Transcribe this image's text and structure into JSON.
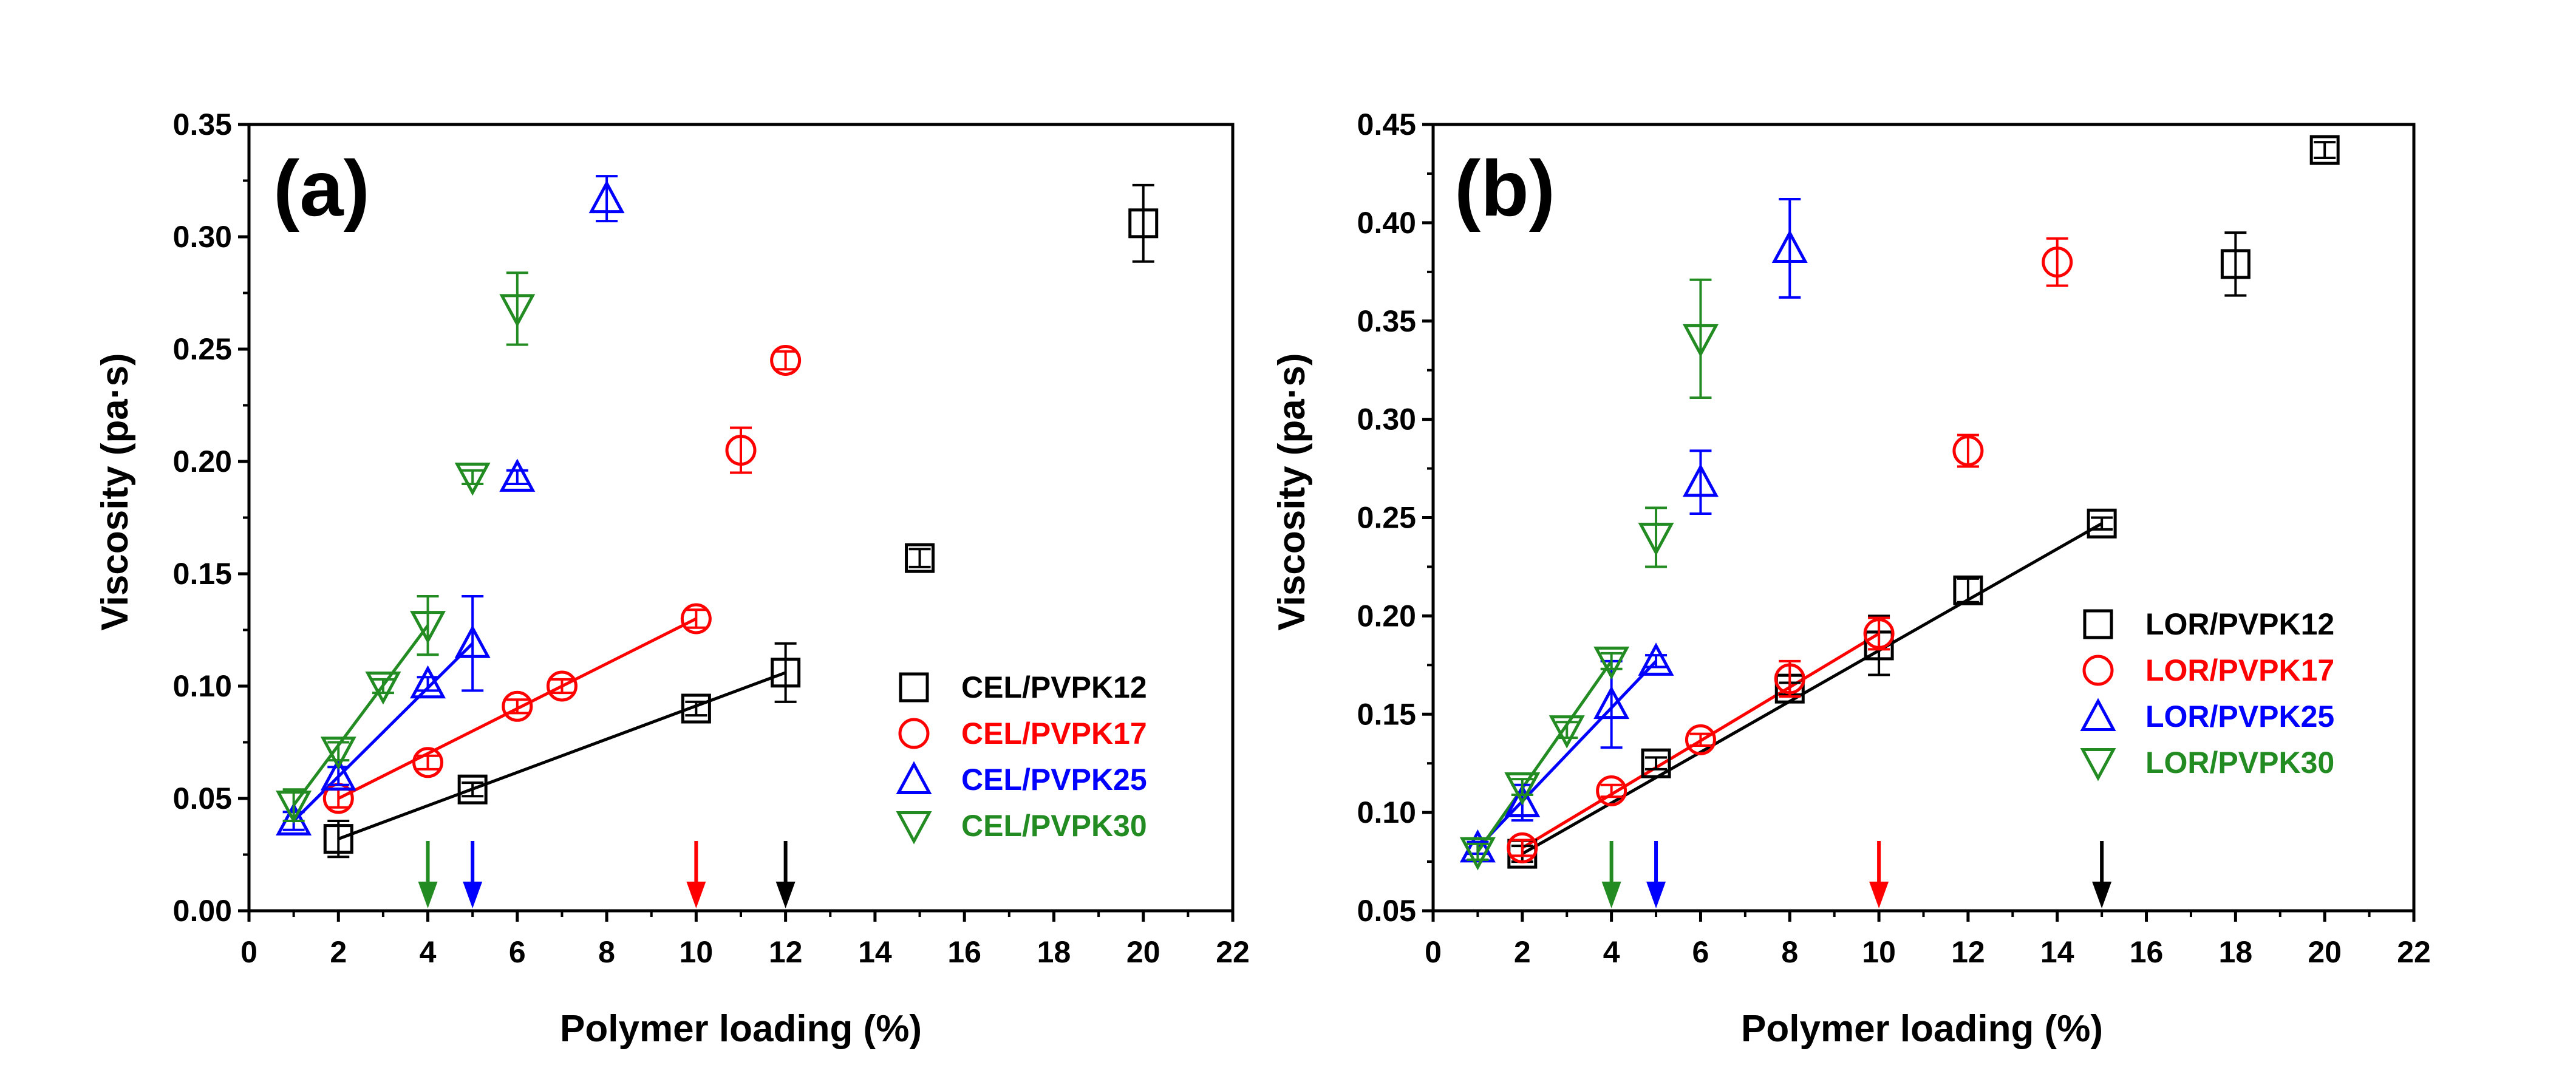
{
  "chart_data": [
    {
      "type": "scatter",
      "panel_label": "(a)",
      "xlabel": "Polymer loading (%)",
      "ylabel": "Viscosity (pa·s)",
      "xlim": [
        0,
        22
      ],
      "ylim": [
        0.0,
        0.35
      ],
      "xticks": [
        "0",
        "2",
        "4",
        "6",
        "8",
        "10",
        "12",
        "14",
        "16",
        "18",
        "20",
        "22"
      ],
      "yticks": [
        "0.00",
        "0.05",
        "0.10",
        "0.15",
        "0.20",
        "0.25",
        "0.30",
        "0.35"
      ],
      "grid": false,
      "legend_position": "bottom-right",
      "series": [
        {
          "name": "CEL/PVPK12",
          "color": "#000000",
          "marker": "square",
          "points": [
            [
              2,
              0.032,
              0.008
            ],
            [
              5,
              0.054,
              0.003
            ],
            [
              10,
              0.09,
              0.003
            ],
            [
              12,
              0.106,
              0.013
            ],
            [
              15,
              0.157,
              0.004
            ],
            [
              20,
              0.306,
              0.017
            ]
          ],
          "fit": [
            [
              2,
              0.032
            ],
            [
              12,
              0.106
            ]
          ]
        },
        {
          "name": "CEL/PVPK17",
          "color": "#ff0000",
          "marker": "circle",
          "points": [
            [
              2,
              0.05,
              0.004
            ],
            [
              4,
              0.066,
              0.003
            ],
            [
              6,
              0.091,
              0.003
            ],
            [
              7,
              0.1,
              0.003
            ],
            [
              10,
              0.13,
              0.004
            ],
            [
              11,
              0.205,
              0.01
            ],
            [
              12,
              0.245,
              0.004
            ]
          ],
          "fit": [
            [
              2,
              0.05
            ],
            [
              10,
              0.13
            ]
          ]
        },
        {
          "name": "CEL/PVPK25",
          "color": "#0000ff",
          "marker": "triangle-up",
          "points": [
            [
              1,
              0.04,
              0.004
            ],
            [
              2,
              0.06,
              0.004
            ],
            [
              4,
              0.101,
              0.003
            ],
            [
              5,
              0.119,
              0.021
            ],
            [
              6,
              0.193,
              0.003
            ],
            [
              8,
              0.317,
              0.01
            ]
          ],
          "fit": [
            [
              1,
              0.04
            ],
            [
              5,
              0.119
            ]
          ]
        },
        {
          "name": "CEL/PVPK30",
          "color": "#228b22",
          "marker": "triangle-down",
          "points": [
            [
              1,
              0.047,
              0.007
            ],
            [
              2,
              0.071,
              0.004
            ],
            [
              3,
              0.1,
              0.003
            ],
            [
              4,
              0.127,
              0.013
            ],
            [
              5,
              0.193,
              0.003
            ],
            [
              6,
              0.268,
              0.016
            ]
          ],
          "fit": [
            [
              1,
              0.047
            ],
            [
              4,
              0.127
            ]
          ]
        }
      ],
      "arrows": [
        {
          "x": 4,
          "color": "#228b22"
        },
        {
          "x": 5,
          "color": "#0000ff"
        },
        {
          "x": 10,
          "color": "#ff0000"
        },
        {
          "x": 12,
          "color": "#000000"
        }
      ]
    },
    {
      "type": "scatter",
      "panel_label": "(b)",
      "xlabel": "Polymer loading (%)",
      "ylabel": "Viscosity (pa·s)",
      "xlim": [
        0,
        22
      ],
      "ylim": [
        0.05,
        0.45
      ],
      "xticks": [
        "0",
        "2",
        "4",
        "6",
        "8",
        "10",
        "12",
        "14",
        "16",
        "18",
        "20",
        "22"
      ],
      "yticks": [
        "0.05",
        "0.10",
        "0.15",
        "0.20",
        "0.25",
        "0.30",
        "0.35",
        "0.40",
        "0.45"
      ],
      "grid": false,
      "legend_position": "right",
      "series": [
        {
          "name": "LOR/PVPK12",
          "color": "#000000",
          "marker": "square",
          "points": [
            [
              2,
              0.079,
              0.004
            ],
            [
              5,
              0.125,
              0.003
            ],
            [
              8,
              0.163,
              0.003
            ],
            [
              10,
              0.185,
              0.015
            ],
            [
              12,
              0.213,
              0.006
            ],
            [
              15,
              0.247,
              0.003
            ],
            [
              18,
              0.379,
              0.016
            ],
            [
              20,
              0.437,
              0.004
            ]
          ],
          "fit": [
            [
              2,
              0.079
            ],
            [
              15,
              0.247
            ]
          ]
        },
        {
          "name": "LOR/PVPK17",
          "color": "#ff0000",
          "marker": "circle",
          "points": [
            [
              2,
              0.082,
              0.004
            ],
            [
              4,
              0.111,
              0.003
            ],
            [
              6,
              0.137,
              0.003
            ],
            [
              8,
              0.168,
              0.009
            ],
            [
              10,
              0.191,
              0.008
            ],
            [
              12,
              0.284,
              0.008
            ],
            [
              14,
              0.38,
              0.012
            ]
          ],
          "fit": [
            [
              2,
              0.082
            ],
            [
              10,
              0.191
            ]
          ]
        },
        {
          "name": "LOR/PVPK25",
          "color": "#0000ff",
          "marker": "triangle-up",
          "points": [
            [
              1,
              0.082,
              0.003
            ],
            [
              2,
              0.105,
              0.009
            ],
            [
              4,
              0.155,
              0.022
            ],
            [
              5,
              0.177,
              0.003
            ],
            [
              6,
              0.268,
              0.016
            ],
            [
              8,
              0.387,
              0.025
            ]
          ],
          "fit": [
            [
              1,
              0.082
            ],
            [
              5,
              0.177
            ]
          ]
        },
        {
          "name": "LOR/PVPK30",
          "color": "#228b22",
          "marker": "triangle-down",
          "points": [
            [
              1,
              0.08,
              0.004
            ],
            [
              2,
              0.113,
              0.004
            ],
            [
              3,
              0.142,
              0.004
            ],
            [
              4,
              0.177,
              0.004
            ],
            [
              5,
              0.24,
              0.015
            ],
            [
              6,
              0.341,
              0.03
            ]
          ],
          "fit": [
            [
              1,
              0.08
            ],
            [
              4,
              0.177
            ]
          ]
        }
      ],
      "arrows": [
        {
          "x": 4,
          "color": "#228b22"
        },
        {
          "x": 5,
          "color": "#0000ff"
        },
        {
          "x": 10,
          "color": "#ff0000"
        },
        {
          "x": 15,
          "color": "#000000"
        }
      ]
    }
  ]
}
